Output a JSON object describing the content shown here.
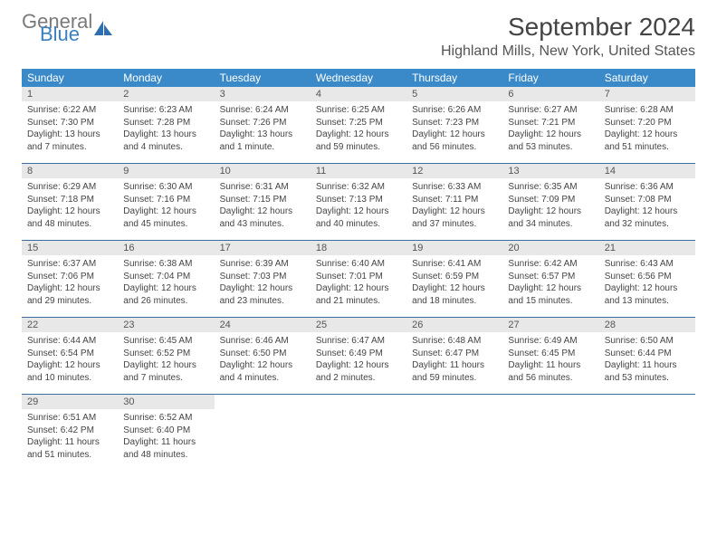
{
  "logo": {
    "general": "General",
    "blue": "Blue"
  },
  "title": "September 2024",
  "location": "Highland Mills, New York, United States",
  "colors": {
    "header_bar": "#3a8ac9",
    "week_divider": "#3a6fa0",
    "daynum_bg": "#e8e8e8",
    "text": "#444444",
    "logo_gray": "#7a7a7a",
    "logo_blue": "#3a7fc2"
  },
  "daynames": [
    "Sunday",
    "Monday",
    "Tuesday",
    "Wednesday",
    "Thursday",
    "Friday",
    "Saturday"
  ],
  "days": [
    {
      "n": "1",
      "sr": "Sunrise: 6:22 AM",
      "ss": "Sunset: 7:30 PM",
      "dl": "Daylight: 13 hours and 7 minutes."
    },
    {
      "n": "2",
      "sr": "Sunrise: 6:23 AM",
      "ss": "Sunset: 7:28 PM",
      "dl": "Daylight: 13 hours and 4 minutes."
    },
    {
      "n": "3",
      "sr": "Sunrise: 6:24 AM",
      "ss": "Sunset: 7:26 PM",
      "dl": "Daylight: 13 hours and 1 minute."
    },
    {
      "n": "4",
      "sr": "Sunrise: 6:25 AM",
      "ss": "Sunset: 7:25 PM",
      "dl": "Daylight: 12 hours and 59 minutes."
    },
    {
      "n": "5",
      "sr": "Sunrise: 6:26 AM",
      "ss": "Sunset: 7:23 PM",
      "dl": "Daylight: 12 hours and 56 minutes."
    },
    {
      "n": "6",
      "sr": "Sunrise: 6:27 AM",
      "ss": "Sunset: 7:21 PM",
      "dl": "Daylight: 12 hours and 53 minutes."
    },
    {
      "n": "7",
      "sr": "Sunrise: 6:28 AM",
      "ss": "Sunset: 7:20 PM",
      "dl": "Daylight: 12 hours and 51 minutes."
    },
    {
      "n": "8",
      "sr": "Sunrise: 6:29 AM",
      "ss": "Sunset: 7:18 PM",
      "dl": "Daylight: 12 hours and 48 minutes."
    },
    {
      "n": "9",
      "sr": "Sunrise: 6:30 AM",
      "ss": "Sunset: 7:16 PM",
      "dl": "Daylight: 12 hours and 45 minutes."
    },
    {
      "n": "10",
      "sr": "Sunrise: 6:31 AM",
      "ss": "Sunset: 7:15 PM",
      "dl": "Daylight: 12 hours and 43 minutes."
    },
    {
      "n": "11",
      "sr": "Sunrise: 6:32 AM",
      "ss": "Sunset: 7:13 PM",
      "dl": "Daylight: 12 hours and 40 minutes."
    },
    {
      "n": "12",
      "sr": "Sunrise: 6:33 AM",
      "ss": "Sunset: 7:11 PM",
      "dl": "Daylight: 12 hours and 37 minutes."
    },
    {
      "n": "13",
      "sr": "Sunrise: 6:35 AM",
      "ss": "Sunset: 7:09 PM",
      "dl": "Daylight: 12 hours and 34 minutes."
    },
    {
      "n": "14",
      "sr": "Sunrise: 6:36 AM",
      "ss": "Sunset: 7:08 PM",
      "dl": "Daylight: 12 hours and 32 minutes."
    },
    {
      "n": "15",
      "sr": "Sunrise: 6:37 AM",
      "ss": "Sunset: 7:06 PM",
      "dl": "Daylight: 12 hours and 29 minutes."
    },
    {
      "n": "16",
      "sr": "Sunrise: 6:38 AM",
      "ss": "Sunset: 7:04 PM",
      "dl": "Daylight: 12 hours and 26 minutes."
    },
    {
      "n": "17",
      "sr": "Sunrise: 6:39 AM",
      "ss": "Sunset: 7:03 PM",
      "dl": "Daylight: 12 hours and 23 minutes."
    },
    {
      "n": "18",
      "sr": "Sunrise: 6:40 AM",
      "ss": "Sunset: 7:01 PM",
      "dl": "Daylight: 12 hours and 21 minutes."
    },
    {
      "n": "19",
      "sr": "Sunrise: 6:41 AM",
      "ss": "Sunset: 6:59 PM",
      "dl": "Daylight: 12 hours and 18 minutes."
    },
    {
      "n": "20",
      "sr": "Sunrise: 6:42 AM",
      "ss": "Sunset: 6:57 PM",
      "dl": "Daylight: 12 hours and 15 minutes."
    },
    {
      "n": "21",
      "sr": "Sunrise: 6:43 AM",
      "ss": "Sunset: 6:56 PM",
      "dl": "Daylight: 12 hours and 13 minutes."
    },
    {
      "n": "22",
      "sr": "Sunrise: 6:44 AM",
      "ss": "Sunset: 6:54 PM",
      "dl": "Daylight: 12 hours and 10 minutes."
    },
    {
      "n": "23",
      "sr": "Sunrise: 6:45 AM",
      "ss": "Sunset: 6:52 PM",
      "dl": "Daylight: 12 hours and 7 minutes."
    },
    {
      "n": "24",
      "sr": "Sunrise: 6:46 AM",
      "ss": "Sunset: 6:50 PM",
      "dl": "Daylight: 12 hours and 4 minutes."
    },
    {
      "n": "25",
      "sr": "Sunrise: 6:47 AM",
      "ss": "Sunset: 6:49 PM",
      "dl": "Daylight: 12 hours and 2 minutes."
    },
    {
      "n": "26",
      "sr": "Sunrise: 6:48 AM",
      "ss": "Sunset: 6:47 PM",
      "dl": "Daylight: 11 hours and 59 minutes."
    },
    {
      "n": "27",
      "sr": "Sunrise: 6:49 AM",
      "ss": "Sunset: 6:45 PM",
      "dl": "Daylight: 11 hours and 56 minutes."
    },
    {
      "n": "28",
      "sr": "Sunrise: 6:50 AM",
      "ss": "Sunset: 6:44 PM",
      "dl": "Daylight: 11 hours and 53 minutes."
    },
    {
      "n": "29",
      "sr": "Sunrise: 6:51 AM",
      "ss": "Sunset: 6:42 PM",
      "dl": "Daylight: 11 hours and 51 minutes."
    },
    {
      "n": "30",
      "sr": "Sunrise: 6:52 AM",
      "ss": "Sunset: 6:40 PM",
      "dl": "Daylight: 11 hours and 48 minutes."
    }
  ]
}
